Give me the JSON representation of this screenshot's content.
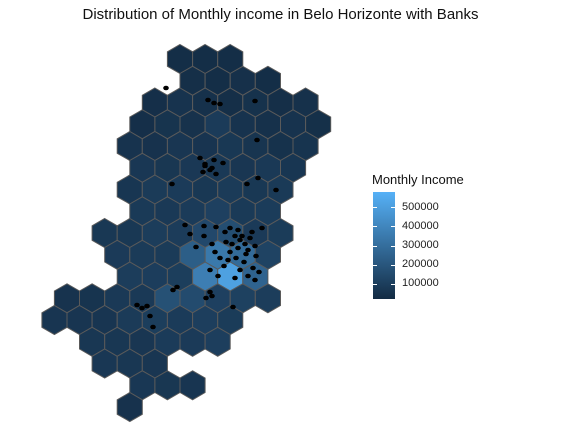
{
  "chart_data": {
    "type": "hexbin-map",
    "title": "Distribution of Monthly income in Belo Horizonte with Banks",
    "region": "Belo Horizonte",
    "fill_variable": "Monthly Income",
    "legend": {
      "title": "Monthly Income",
      "placement": "right",
      "ticks": [
        {
          "value": 500000,
          "label": "500000"
        },
        {
          "value": 400000,
          "label": "400000"
        },
        {
          "value": 300000,
          "label": "300000"
        },
        {
          "value": 200000,
          "label": "200000"
        },
        {
          "value": 100000,
          "label": "100000"
        }
      ],
      "range": [
        20000,
        580000
      ],
      "low_color": "#132B43",
      "high_color": "#56B1F7"
    },
    "point_layer": "Banks",
    "point_color": "#000000",
    "hex_outline_color": "#5a5a5a",
    "grid": false
  }
}
